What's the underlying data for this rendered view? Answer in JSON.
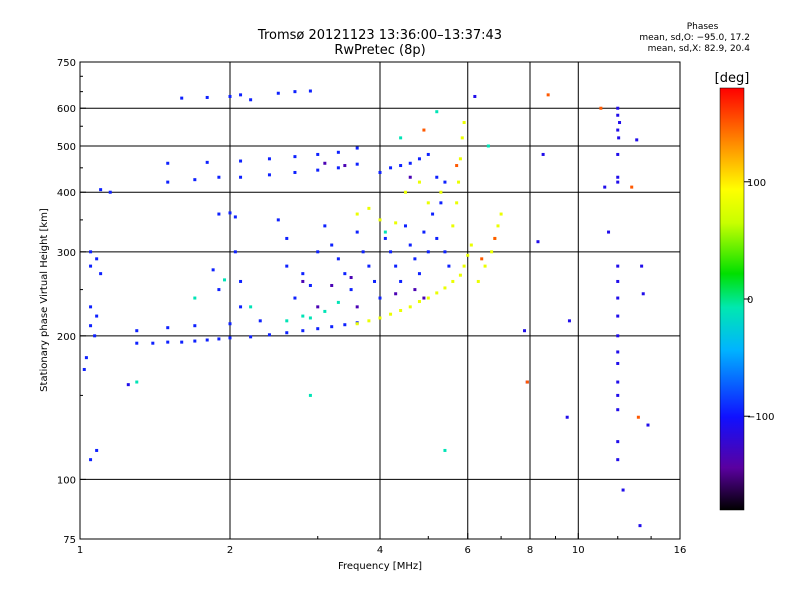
{
  "header": {
    "title_line1": "Tromsø 20121123 13:36:00–13:37:43",
    "title_line2": "RwPretec (8p)"
  },
  "phase_info": {
    "heading": "Phases",
    "line_o": "mean, sd,O: −95.0, 17.2",
    "line_x": "mean, sd,X:  82.9, 20.4"
  },
  "colorbar": {
    "unit": "[deg]",
    "ticks": [
      {
        "value": 100,
        "label": "100"
      },
      {
        "value": 0,
        "label": "0"
      },
      {
        "value": -100,
        "label": "−100"
      }
    ],
    "min": -180,
    "max": 180
  },
  "chart_data": {
    "type": "scatter",
    "xlabel": "Frequency [MHz]",
    "ylabel": "Stationary phase Virtual Height [km]",
    "xscale": "log",
    "yscale": "log",
    "xlim": [
      1,
      16
    ],
    "ylim": [
      75,
      750
    ],
    "xticks": [
      {
        "value": 1,
        "label": "1"
      },
      {
        "value": 2,
        "label": "2"
      },
      {
        "value": 4,
        "label": "4"
      },
      {
        "value": 6,
        "label": "6"
      },
      {
        "value": 8,
        "label": "8"
      },
      {
        "value": 10,
        "label": "10"
      },
      {
        "value": 16,
        "label": "16"
      }
    ],
    "yticks": [
      {
        "value": 75,
        "label": "75"
      },
      {
        "value": 100,
        "label": "100"
      },
      {
        "value": 200,
        "label": "200"
      },
      {
        "value": 300,
        "label": "300"
      },
      {
        "value": 400,
        "label": "400"
      },
      {
        "value": 500,
        "label": "500"
      },
      {
        "value": 600,
        "label": "600"
      },
      {
        "value": 750,
        "label": "750"
      }
    ],
    "xgrid": [
      2,
      4,
      6,
      8,
      10
    ],
    "ygrid": [
      100,
      200,
      300,
      400,
      500,
      600
    ],
    "grid": true,
    "series": [
      {
        "points": [
          [
            1.3,
            193
          ],
          [
            1.4,
            193
          ],
          [
            1.5,
            194
          ],
          [
            1.6,
            194
          ],
          [
            1.7,
            195
          ],
          [
            1.8,
            196
          ],
          [
            1.9,
            197
          ],
          [
            2.0,
            198
          ],
          [
            2.2,
            199
          ],
          [
            2.4,
            201
          ],
          [
            2.6,
            203
          ],
          [
            2.8,
            205
          ],
          [
            3.0,
            207
          ],
          [
            3.2,
            209
          ],
          [
            3.4,
            211
          ],
          [
            3.6,
            213
          ],
          [
            1.3,
            205
          ],
          [
            1.5,
            208
          ],
          [
            1.7,
            210
          ],
          [
            2.0,
            212
          ],
          [
            2.3,
            215
          ],
          [
            1.5,
            420
          ],
          [
            1.7,
            425
          ],
          [
            1.9,
            430
          ],
          [
            2.1,
            430
          ],
          [
            2.4,
            435
          ],
          [
            2.7,
            440
          ],
          [
            3.0,
            445
          ],
          [
            3.3,
            450
          ],
          [
            3.6,
            458
          ],
          [
            1.5,
            460
          ],
          [
            1.8,
            462
          ],
          [
            2.1,
            465
          ],
          [
            2.4,
            470
          ],
          [
            2.7,
            475
          ],
          [
            3.0,
            480
          ],
          [
            3.3,
            485
          ],
          [
            3.6,
            495
          ],
          [
            1.6,
            630
          ],
          [
            1.8,
            632
          ],
          [
            2.0,
            635
          ],
          [
            2.1,
            640
          ],
          [
            2.2,
            625
          ],
          [
            2.5,
            645
          ],
          [
            2.7,
            650
          ],
          [
            2.9,
            652
          ],
          [
            1.9,
            360
          ],
          [
            2.0,
            362
          ],
          [
            2.05,
            355
          ],
          [
            1.85,
            275
          ],
          [
            1.9,
            250
          ],
          [
            2.05,
            300
          ],
          [
            2.1,
            260
          ],
          [
            2.1,
            230
          ],
          [
            2.5,
            350
          ],
          [
            2.6,
            320
          ],
          [
            2.6,
            280
          ],
          [
            2.7,
            240
          ],
          [
            2.8,
            270
          ],
          [
            2.9,
            255
          ],
          [
            3.0,
            300
          ],
          [
            3.1,
            340
          ],
          [
            3.2,
            310
          ],
          [
            3.3,
            290
          ],
          [
            3.4,
            270
          ],
          [
            3.5,
            250
          ],
          [
            3.6,
            330
          ],
          [
            3.7,
            300
          ],
          [
            3.8,
            280
          ],
          [
            3.9,
            260
          ],
          [
            4.0,
            240
          ],
          [
            4.1,
            320
          ],
          [
            4.2,
            300
          ],
          [
            4.3,
            280
          ],
          [
            4.4,
            260
          ],
          [
            4.5,
            340
          ],
          [
            4.6,
            310
          ],
          [
            4.7,
            290
          ],
          [
            4.8,
            270
          ],
          [
            4.9,
            330
          ],
          [
            5.0,
            300
          ],
          [
            5.1,
            360
          ],
          [
            5.2,
            320
          ],
          [
            5.3,
            380
          ],
          [
            5.4,
            300
          ],
          [
            5.5,
            280
          ],
          [
            4.0,
            440
          ],
          [
            4.2,
            450
          ],
          [
            4.4,
            455
          ],
          [
            4.6,
            460
          ],
          [
            4.8,
            470
          ],
          [
            5.0,
            480
          ],
          [
            5.2,
            430
          ],
          [
            5.4,
            420
          ],
          [
            1.05,
            300
          ],
          [
            1.08,
            290
          ],
          [
            1.05,
            280
          ],
          [
            1.1,
            270
          ],
          [
            1.05,
            230
          ],
          [
            1.08,
            220
          ],
          [
            1.05,
            210
          ],
          [
            1.07,
            200
          ],
          [
            1.03,
            180
          ],
          [
            1.02,
            170
          ],
          [
            1.05,
            110
          ],
          [
            1.08,
            115
          ],
          [
            1.1,
            405
          ],
          [
            1.15,
            400
          ]
        ],
        "color_deg": -95
      },
      {
        "points": [
          [
            3.6,
            212
          ],
          [
            3.8,
            215
          ],
          [
            4.0,
            218
          ],
          [
            4.2,
            222
          ],
          [
            4.4,
            226
          ],
          [
            4.6,
            230
          ],
          [
            4.8,
            236
          ],
          [
            5.0,
            240
          ],
          [
            5.2,
            246
          ],
          [
            5.4,
            252
          ],
          [
            5.6,
            260
          ],
          [
            5.8,
            268
          ],
          [
            5.9,
            280
          ],
          [
            6.0,
            295
          ],
          [
            6.1,
            310
          ],
          [
            5.6,
            340
          ],
          [
            5.7,
            380
          ],
          [
            5.75,
            420
          ],
          [
            5.8,
            470
          ],
          [
            5.85,
            520
          ],
          [
            5.9,
            560
          ],
          [
            6.3,
            260
          ],
          [
            6.5,
            280
          ],
          [
            6.7,
            300
          ],
          [
            6.8,
            320
          ],
          [
            6.9,
            340
          ],
          [
            7.0,
            360
          ],
          [
            4.0,
            350
          ],
          [
            4.3,
            345
          ],
          [
            4.5,
            400
          ],
          [
            4.8,
            420
          ],
          [
            5.0,
            380
          ],
          [
            5.3,
            400
          ],
          [
            3.6,
            360
          ],
          [
            3.8,
            370
          ]
        ],
        "color_deg": 83
      },
      {
        "points": [
          [
            2.6,
            215
          ],
          [
            2.8,
            220
          ],
          [
            3.1,
            225
          ],
          [
            3.3,
            235
          ],
          [
            2.2,
            230
          ],
          [
            2.9,
            218
          ],
          [
            1.3,
            160
          ],
          [
            2.9,
            150
          ],
          [
            4.1,
            330
          ],
          [
            4.4,
            520
          ],
          [
            5.4,
            115
          ],
          [
            5.2,
            590
          ],
          [
            6.6,
            500
          ],
          [
            1.7,
            240
          ],
          [
            1.95,
            262
          ]
        ],
        "color_deg": -10
      },
      {
        "points": [
          [
            3.1,
            460
          ],
          [
            3.4,
            455
          ],
          [
            3.2,
            255
          ],
          [
            3.5,
            265
          ],
          [
            4.3,
            245
          ],
          [
            4.7,
            250
          ],
          [
            2.8,
            260
          ],
          [
            3.6,
            230
          ],
          [
            3.0,
            230
          ],
          [
            4.6,
            430
          ],
          [
            4.9,
            240
          ]
        ],
        "color_deg": -135
      },
      {
        "points": [
          [
            12.0,
            600
          ],
          [
            12.0,
            580
          ],
          [
            12.1,
            560
          ],
          [
            12.0,
            540
          ],
          [
            12.05,
            520
          ],
          [
            12.0,
            480
          ],
          [
            12.0,
            430
          ],
          [
            12.0,
            420
          ],
          [
            12.0,
            280
          ],
          [
            12.0,
            260
          ],
          [
            12.0,
            240
          ],
          [
            12.0,
            220
          ],
          [
            12.0,
            200
          ],
          [
            12.0,
            185
          ],
          [
            12.0,
            175
          ],
          [
            12.0,
            160
          ],
          [
            12.0,
            150
          ],
          [
            12.0,
            140
          ],
          [
            12.0,
            120
          ],
          [
            12.0,
            110
          ],
          [
            11.5,
            330
          ],
          [
            11.3,
            410
          ],
          [
            9.6,
            215
          ],
          [
            9.5,
            135
          ],
          [
            8.5,
            480
          ],
          [
            8.3,
            315
          ],
          [
            13.4,
            280
          ],
          [
            13.5,
            245
          ],
          [
            13.8,
            130
          ],
          [
            12.3,
            95
          ],
          [
            13.1,
            515
          ],
          [
            13.3,
            80
          ],
          [
            7.8,
            205
          ],
          [
            7.9,
            160
          ],
          [
            1.25,
            158
          ],
          [
            6.2,
            635
          ]
        ],
        "color_deg": -110
      },
      {
        "points": [
          [
            11.1,
            600
          ],
          [
            12.8,
            410
          ],
          [
            13.2,
            135
          ],
          [
            7.9,
            160
          ],
          [
            8.7,
            640
          ],
          [
            6.8,
            320
          ],
          [
            6.4,
            290
          ],
          [
            4.9,
            540
          ],
          [
            5.7,
            455
          ]
        ],
        "color_deg": 150
      }
    ]
  }
}
